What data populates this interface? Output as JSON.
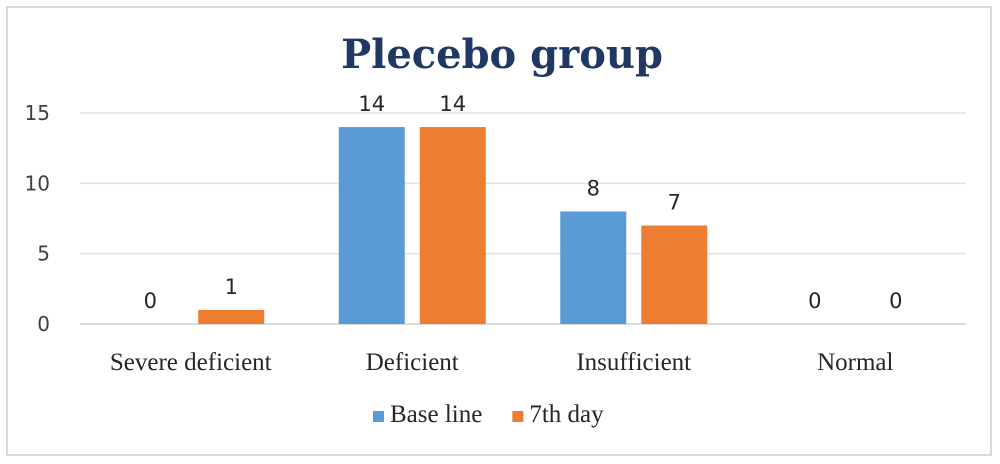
{
  "chart_data": {
    "type": "bar",
    "title": "Plecebo group",
    "categories": [
      "Severe deficient",
      "Deficient",
      "Insufficient",
      "Normal"
    ],
    "series": [
      {
        "name": "Base line",
        "values": [
          0,
          14,
          8,
          0
        ],
        "color": "#5b9bd5"
      },
      {
        "name": "7th day",
        "values": [
          1,
          14,
          7,
          0
        ],
        "color": "#ed7d31"
      }
    ],
    "yticks": [
      0,
      5,
      10,
      15
    ],
    "ylim": [
      0,
      15
    ],
    "grid": true,
    "legend_position": "bottom",
    "data_labels": true
  }
}
